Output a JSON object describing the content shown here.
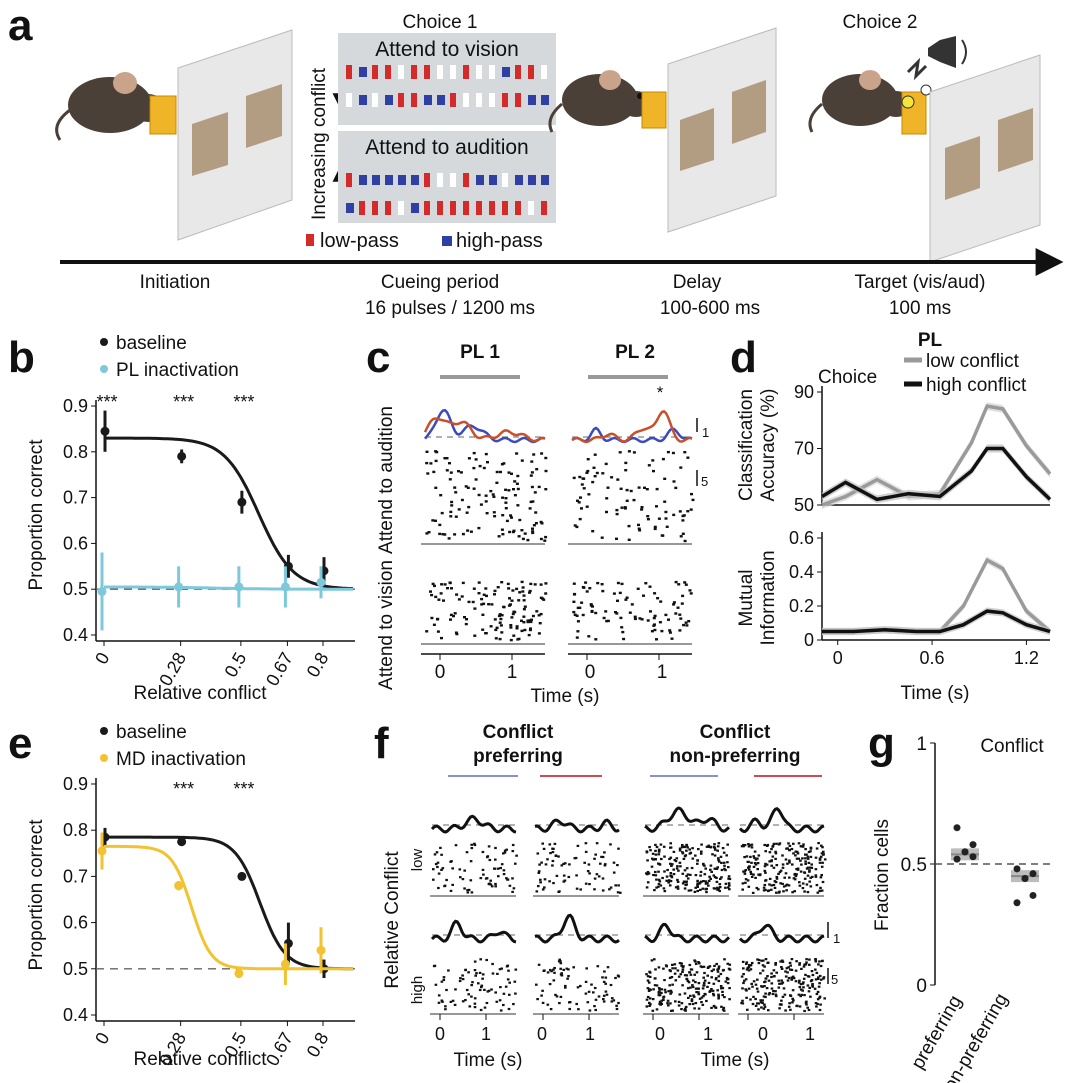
{
  "panel_a": {
    "letter": "a",
    "choice1": "Choice 1",
    "choice2": "Choice 2",
    "attend_vision": "Attend to vision",
    "attend_audition": "Attend to audition",
    "increasing_conflict": "Increasing conflict",
    "low_pass": "low-pass",
    "high_pass": "high-pass",
    "timeline": [
      {
        "label": "Initiation",
        "sub": ""
      },
      {
        "label": "Cueing period",
        "sub": "16 pulses / 1200 ms"
      },
      {
        "label": "Delay",
        "sub": "100-600 ms"
      },
      {
        "label": "Target (vis/aud)",
        "sub": "100 ms"
      }
    ],
    "colors": {
      "vision": "#d42a2a",
      "audition": "#2f3fa3",
      "nose_port": "#f0b429"
    }
  },
  "panel_b": {
    "letter": "b",
    "legend": [
      "baseline",
      "PL inactivation"
    ],
    "ylabel": "Proportion correct",
    "xlabel": "Relative conflict",
    "stars": [
      "***",
      "***",
      "***"
    ]
  },
  "panel_c": {
    "letter": "c",
    "titles": [
      "PL 1",
      "PL 2"
    ],
    "row_labels": [
      "Attend to audition",
      "Attend to vision"
    ],
    "star": "*",
    "scale": [
      "1",
      "5"
    ],
    "xlabel": "Time (s)",
    "xticks": [
      "0",
      "1",
      "0",
      "1"
    ]
  },
  "panel_d": {
    "letter": "d",
    "title": "PL",
    "choice_label": "Choice",
    "legend": [
      "low conflict",
      "high conflict"
    ],
    "ylabel_top": [
      "Classification",
      "Accuracy (%)"
    ],
    "ylabel_bottom": [
      "Mutual",
      "Information"
    ],
    "xlabel": "Time (s)"
  },
  "panel_e": {
    "letter": "e",
    "legend": [
      "baseline",
      "MD inactivation"
    ],
    "ylabel": "Proportion correct",
    "xlabel": "Relative conflict",
    "stars": [
      "***",
      "***"
    ]
  },
  "panel_f": {
    "letter": "f",
    "groups": [
      [
        "Conflict",
        "preferring"
      ],
      [
        "Conflict",
        "non-preferring"
      ]
    ],
    "ylabel": "Relative Conflict",
    "row_labels": [
      "low",
      "high"
    ],
    "scale": [
      "1",
      "5"
    ],
    "xlabel": "Time (s)",
    "xticks": [
      "0",
      "1"
    ]
  },
  "panel_g": {
    "letter": "g",
    "title": "Conflict",
    "ylabel": "Fraction cells",
    "categories": [
      "preferring",
      "non-preferring"
    ]
  },
  "chart_data": [
    {
      "panel": "b",
      "type": "scatter",
      "title": "",
      "xlabel": "Relative conflict",
      "ylabel": "Proportion correct",
      "categories": [
        "0",
        "0.28",
        "0.5",
        "0.67",
        "0.8"
      ],
      "x": [
        0,
        0.28,
        0.5,
        0.67,
        0.8
      ],
      "ylim": [
        0.4,
        0.9
      ],
      "yticks": [
        "0.4",
        "0.5",
        "0.6",
        "0.7",
        "0.8",
        "0.9"
      ],
      "chance_line": 0.5,
      "series": [
        {
          "name": "baseline",
          "color": "#1a1a1a",
          "values": [
            0.845,
            0.79,
            0.69,
            0.55,
            0.54
          ],
          "err": [
            0.045,
            0.015,
            0.025,
            0.025,
            0.03
          ],
          "fit": [
            0.83,
            0.5,
            0.565,
            16
          ]
        },
        {
          "name": "PL inactivation",
          "color": "#7ec8dc",
          "values": [
            0.495,
            0.505,
            0.505,
            0.505,
            0.515
          ],
          "err": [
            0.085,
            0.045,
            0.045,
            0.045,
            0.035
          ],
          "fit": [
            0.505,
            0.5,
            0.4,
            10
          ]
        }
      ]
    },
    {
      "panel": "e",
      "type": "scatter",
      "title": "",
      "xlabel": "Relative conflict",
      "ylabel": "Proportion correct",
      "categories": [
        "0",
        "0.28",
        "0.5",
        "0.67",
        "0.8"
      ],
      "x": [
        0,
        0.28,
        0.5,
        0.67,
        0.8
      ],
      "ylim": [
        0.4,
        0.9
      ],
      "yticks": [
        "0.4",
        "0.5",
        "0.6",
        "0.7",
        "0.8",
        "0.9"
      ],
      "chance_line": 0.5,
      "series": [
        {
          "name": "baseline",
          "color": "#1a1a1a",
          "values": [
            0.785,
            0.775,
            0.7,
            0.555,
            0.5
          ],
          "err": [
            0.02,
            0.005,
            0.005,
            0.045,
            0.02
          ],
          "fit": [
            0.785,
            0.5,
            0.57,
            22
          ]
        },
        {
          "name": "MD inactivation",
          "color": "#f2c230",
          "values": [
            0.755,
            0.68,
            0.49,
            0.51,
            0.54
          ],
          "err": [
            0.04,
            0.01,
            0.01,
            0.045,
            0.05
          ],
          "fit": [
            0.765,
            0.5,
            0.32,
            28
          ]
        }
      ]
    },
    {
      "panel": "d-top",
      "type": "line",
      "title": "PL",
      "xlabel": "",
      "ylabel": "Classification Accuracy (%)",
      "xlim": [
        -0.1,
        1.35
      ],
      "ylim": [
        50,
        90
      ],
      "yticks": [
        "50",
        "70",
        "90"
      ],
      "x": [
        -0.1,
        0.05,
        0.25,
        0.45,
        0.65,
        0.85,
        0.95,
        1.05,
        1.2,
        1.35
      ],
      "series": [
        {
          "name": "low conflict",
          "color": "#9a9a9a",
          "values": [
            50,
            53,
            59,
            53,
            54,
            72,
            85,
            84,
            71,
            61
          ]
        },
        {
          "name": "high conflict",
          "color": "#111111",
          "values": [
            53,
            58,
            52,
            54,
            53,
            62,
            70,
            70,
            60,
            52
          ]
        }
      ]
    },
    {
      "panel": "d-bottom",
      "type": "line",
      "title": "",
      "xlabel": "Time (s)",
      "ylabel": "Mutual Information",
      "xlim": [
        -0.1,
        1.35
      ],
      "ylim": [
        0,
        0.6
      ],
      "yticks": [
        "0",
        "0.2",
        "0.4",
        "0.6"
      ],
      "xticks": [
        "0",
        "0.6",
        "1.2"
      ],
      "x": [
        -0.1,
        0.1,
        0.3,
        0.5,
        0.65,
        0.8,
        0.95,
        1.05,
        1.2,
        1.35
      ],
      "series": [
        {
          "name": "low conflict",
          "color": "#9a9a9a",
          "values": [
            0.05,
            0.05,
            0.06,
            0.05,
            0.05,
            0.2,
            0.47,
            0.42,
            0.17,
            0.05
          ]
        },
        {
          "name": "high conflict",
          "color": "#111111",
          "values": [
            0.05,
            0.05,
            0.06,
            0.05,
            0.05,
            0.09,
            0.17,
            0.16,
            0.09,
            0.05
          ]
        }
      ]
    },
    {
      "panel": "g",
      "type": "scatter",
      "title": "Conflict",
      "xlabel": "",
      "ylabel": "Fraction cells",
      "categories": [
        "preferring",
        "non-preferring"
      ],
      "ylim": [
        0,
        1
      ],
      "yticks": [
        "0",
        "0.5",
        "1"
      ],
      "chance_line": 0.5,
      "series": [
        {
          "name": "",
          "color": "#222222",
          "means": [
            0.54,
            0.45
          ],
          "points": [
            [
              0.65,
              0.55,
              0.53,
              0.52,
              0.55,
              0.58
            ],
            [
              0.48,
              0.44,
              0.37,
              0.34,
              0.44,
              0.46
            ]
          ]
        }
      ]
    }
  ]
}
